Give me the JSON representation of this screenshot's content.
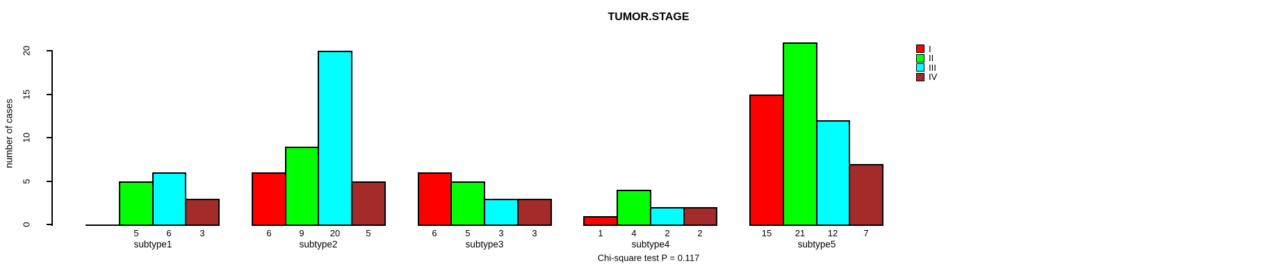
{
  "chart_data": {
    "type": "bar",
    "title": "TUMOR.STAGE",
    "ylabel": "number of cases",
    "xlabel": "",
    "categories": [
      "subtype1",
      "subtype2",
      "subtype3",
      "subtype4",
      "subtype5"
    ],
    "series": [
      {
        "name": "I",
        "color": "#FF0000",
        "values": [
          0,
          6,
          6,
          1,
          15
        ]
      },
      {
        "name": "II",
        "color": "#00FF00",
        "values": [
          5,
          9,
          5,
          4,
          21
        ]
      },
      {
        "name": "III",
        "color": "#00FFFF",
        "values": [
          6,
          20,
          3,
          2,
          12
        ]
      },
      {
        "name": "IV",
        "color": "#A52A2A",
        "values": [
          3,
          5,
          3,
          2,
          7
        ]
      }
    ],
    "ylim": [
      0,
      20
    ],
    "yticks": [
      0,
      5,
      10,
      15,
      20
    ],
    "grid": false,
    "legend_position": "top-right",
    "bar_value_labels": "value printed under each bar; zero values have no label",
    "footnote": "Chi-square test P = 0.117",
    "axis_color": "#000000",
    "background_color": "#FFFFFF"
  }
}
